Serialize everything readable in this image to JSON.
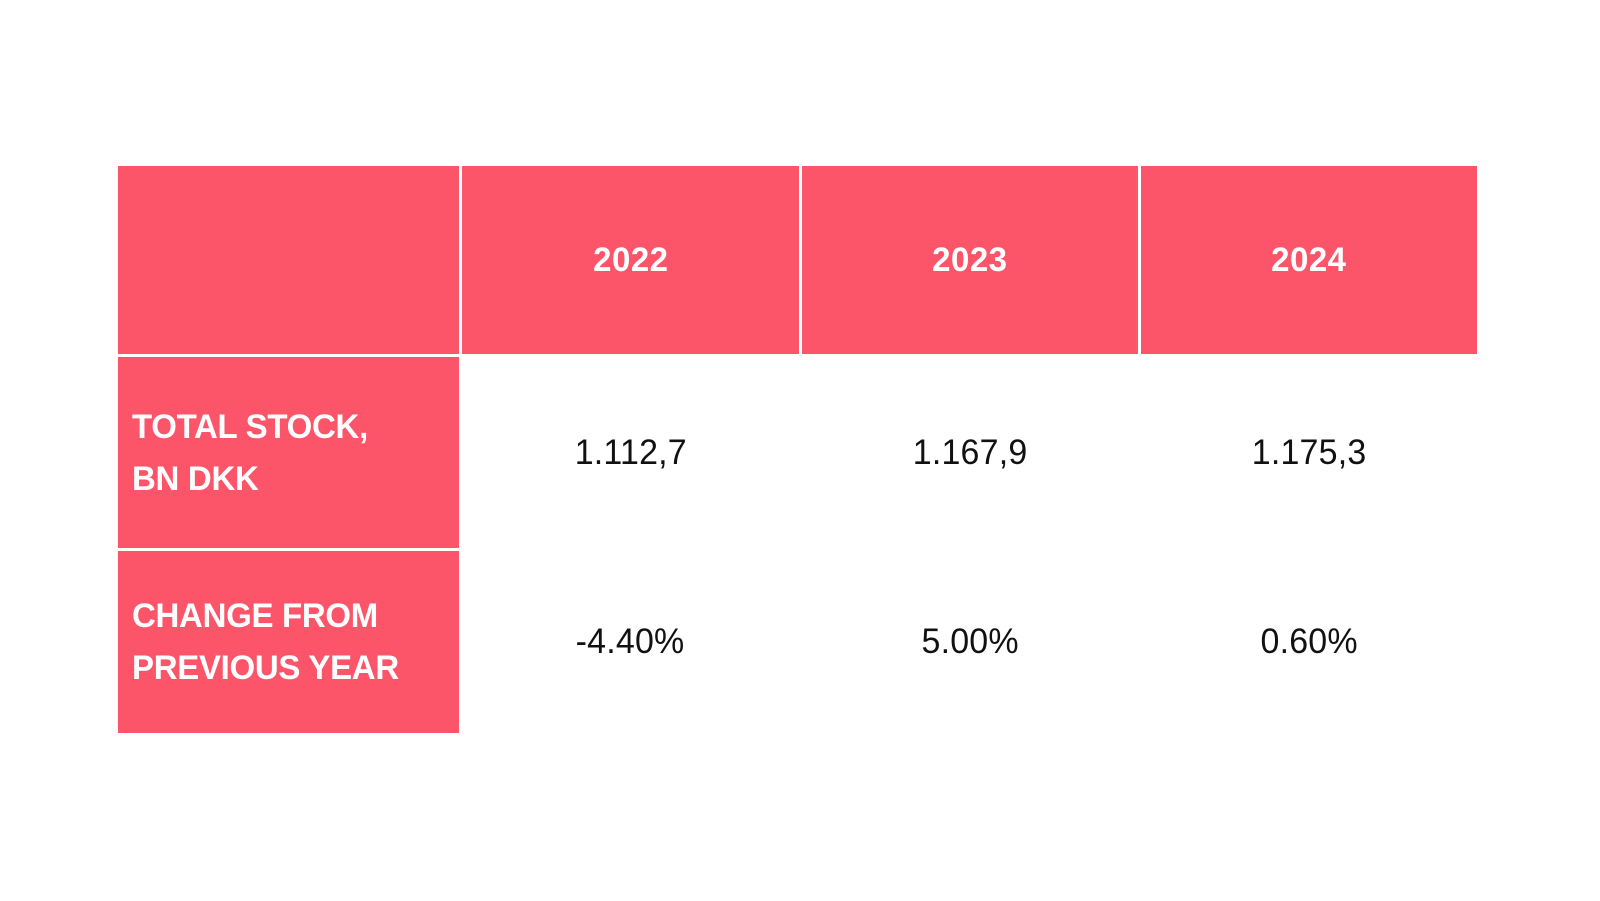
{
  "table": {
    "corner_label": "",
    "columns": [
      "2022",
      "2023",
      "2024"
    ],
    "rows": [
      {
        "label_lines": [
          "TOTAL STOCK,",
          "BN DKK"
        ],
        "values": [
          "1.112,7",
          "1.167,9",
          "1.175,3"
        ]
      },
      {
        "label_lines": [
          "CHANGE FROM",
          "PREVIOUS YEAR"
        ],
        "values": [
          "-4.40%",
          "5.00%",
          "0.60%"
        ]
      }
    ]
  },
  "colors": {
    "accent": "#FC5569",
    "header_text": "#FFFFFF",
    "value_text": "#111111",
    "background": "#FFFFFF"
  },
  "chart_data": {
    "type": "table",
    "title": "",
    "categories": [
      "2022",
      "2023",
      "2024"
    ],
    "series": [
      {
        "name": "TOTAL STOCK, BN DKK",
        "values": [
          1112.7,
          1167.9,
          1175.3
        ],
        "display": [
          "1.112,7",
          "1.167,9",
          "1.175,3"
        ]
      },
      {
        "name": "CHANGE FROM PREVIOUS YEAR",
        "values": [
          -4.4,
          5.0,
          0.6
        ],
        "unit": "%",
        "display": [
          "-4.40%",
          "5.00%",
          "0.60%"
        ]
      }
    ],
    "layout": "rows are series, columns are years; first column and header row use accent background"
  }
}
